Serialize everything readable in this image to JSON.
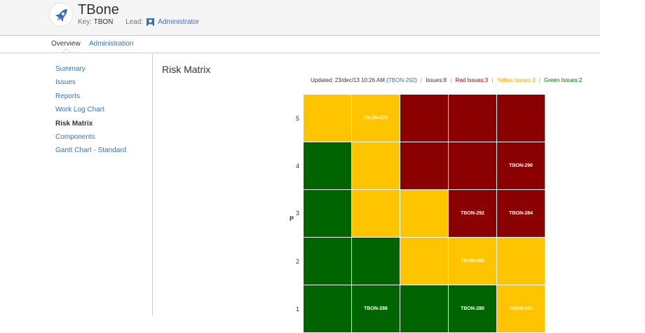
{
  "project": {
    "name": "TBone",
    "key_label": "Key:",
    "key": "TBON",
    "lead_label": "Lead:",
    "lead": "Administrator"
  },
  "tabs": [
    {
      "label": "Overview",
      "active": true
    },
    {
      "label": "Administration",
      "active": false
    }
  ],
  "sidebar": {
    "items": [
      {
        "label": "Summary",
        "current": false
      },
      {
        "label": "Issues",
        "current": false
      },
      {
        "label": "Reports",
        "current": false
      },
      {
        "label": "Work Log Chart",
        "current": false
      },
      {
        "label": "Risk Matrix",
        "current": true
      },
      {
        "label": "Components",
        "current": false
      },
      {
        "label": "Gantt Chart - Standard",
        "current": false
      }
    ]
  },
  "page_title": "Risk Matrix",
  "status": {
    "updated_prefix": "Updated: 23/dec/13 10:26 AM (",
    "updated_issue": "TBON-292",
    "updated_suffix": ")",
    "issues": "Issues:8",
    "red": "Red Issues:3",
    "yellow": "Yellow Issues:3",
    "green": "Green Issues:2",
    "sep": "|"
  },
  "axis": {
    "p_label": "P",
    "rows": [
      "5",
      "4",
      "3",
      "2",
      "1"
    ]
  },
  "colors": {
    "green": "#006400",
    "yellow": "#ffc400",
    "red": "#8b0000",
    "link": "#3b73af"
  },
  "matrix": [
    [
      {
        "c": "yellow",
        "t": ""
      },
      {
        "c": "yellow",
        "t": "TBON-279"
      },
      {
        "c": "red",
        "t": ""
      },
      {
        "c": "red",
        "t": ""
      },
      {
        "c": "red",
        "t": ""
      }
    ],
    [
      {
        "c": "green",
        "t": ""
      },
      {
        "c": "yellow",
        "t": ""
      },
      {
        "c": "red",
        "t": ""
      },
      {
        "c": "red",
        "t": ""
      },
      {
        "c": "red",
        "t": "TBON-290"
      }
    ],
    [
      {
        "c": "green",
        "t": ""
      },
      {
        "c": "yellow",
        "t": ""
      },
      {
        "c": "yellow",
        "t": ""
      },
      {
        "c": "red",
        "t": "TBON-292"
      },
      {
        "c": "red",
        "t": "TBON-284"
      }
    ],
    [
      {
        "c": "green",
        "t": ""
      },
      {
        "c": "green",
        "t": ""
      },
      {
        "c": "yellow",
        "t": ""
      },
      {
        "c": "yellow",
        "t": "TBON-288"
      },
      {
        "c": "yellow",
        "t": ""
      }
    ],
    [
      {
        "c": "green",
        "t": ""
      },
      {
        "c": "green",
        "t": "TBON-286"
      },
      {
        "c": "green",
        "t": ""
      },
      {
        "c": "green",
        "t": "TBON-280"
      },
      {
        "c": "yellow",
        "t": "TBON-291"
      }
    ]
  ]
}
